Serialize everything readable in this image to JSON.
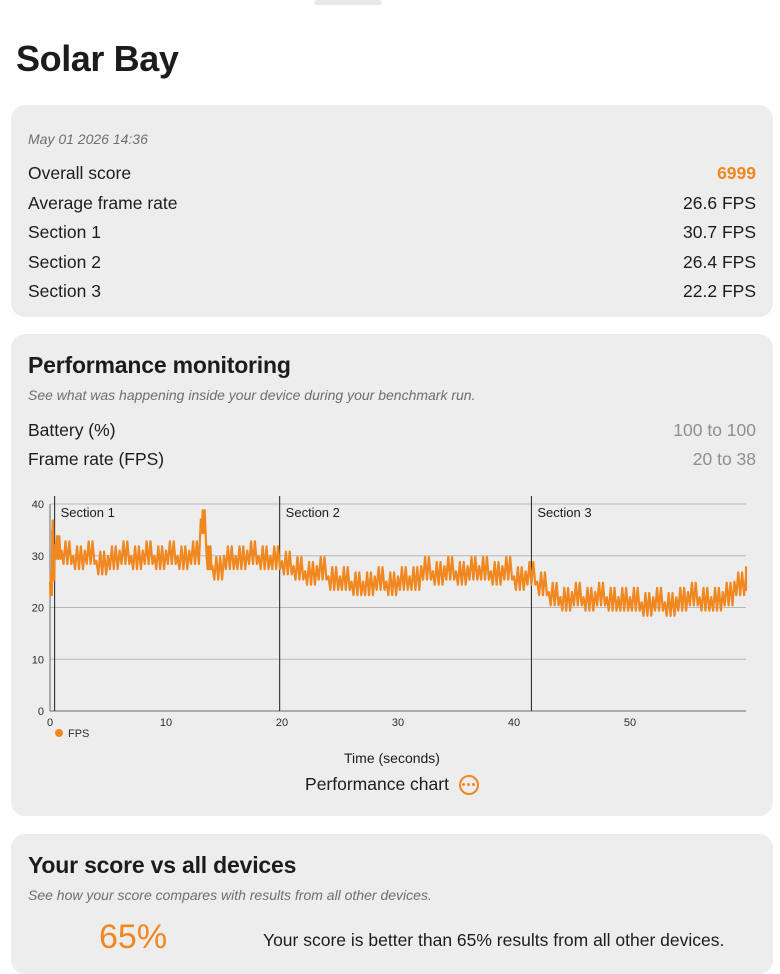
{
  "page": {
    "title": "Solar Bay"
  },
  "summary": {
    "timestamp": "May 01 2026 14:36",
    "rows": [
      {
        "label": "Overall score",
        "value": "6999"
      },
      {
        "label": "Average frame rate",
        "value": "26.6 FPS"
      },
      {
        "label": "Section 1",
        "value": "30.7 FPS"
      },
      {
        "label": "Section 2",
        "value": "26.4 FPS"
      },
      {
        "label": "Section 3",
        "value": "22.2 FPS"
      }
    ]
  },
  "performance": {
    "title": "Performance monitoring",
    "subtitle": "See what was happening inside your device during your benchmark run.",
    "metrics": [
      {
        "label": "Battery (%)",
        "value": "100 to 100"
      },
      {
        "label": "Frame rate (FPS)",
        "value": "20 to 38"
      }
    ],
    "chart_link_label": "Performance chart",
    "more_icon": "ellipsis-circle-icon"
  },
  "chart_data": {
    "type": "line",
    "xlabel": "Time (seconds)",
    "ylabel": "",
    "xlim": [
      0,
      60
    ],
    "ylim": [
      0,
      40
    ],
    "x_ticks": [
      0,
      10,
      20,
      30,
      40,
      50
    ],
    "y_ticks": [
      0,
      10,
      20,
      30,
      40
    ],
    "grid": true,
    "legend_position": "bottom-left",
    "color": "#f0871f",
    "sections": [
      {
        "label": "Section 1",
        "start": 0.4
      },
      {
        "label": "Section 2",
        "start": 19.8
      },
      {
        "label": "Section 3",
        "start": 41.5
      }
    ],
    "series": [
      {
        "name": "FPS",
        "x": [
          0,
          0.2,
          0.3,
          0.4,
          1,
          2,
          3,
          4,
          5,
          6,
          7,
          8,
          9,
          10,
          11,
          12,
          13,
          13.5,
          14,
          15,
          16,
          17,
          18,
          19,
          20,
          21,
          22,
          23,
          24,
          25,
          26,
          27,
          28,
          29,
          30,
          31,
          32,
          33,
          34,
          35,
          36,
          37,
          38,
          39,
          40,
          41,
          42,
          43,
          44,
          45,
          46,
          47,
          48,
          49,
          50,
          51,
          52,
          53,
          54,
          55,
          56,
          57,
          58,
          59,
          60
        ],
        "values": [
          25,
          35,
          28,
          32,
          31,
          30,
          31,
          29,
          30,
          31,
          30,
          31,
          30,
          31,
          30,
          31,
          37,
          30,
          28,
          30,
          30,
          31,
          30,
          30,
          29,
          28,
          27,
          28,
          26,
          26,
          25,
          25,
          26,
          25,
          26,
          26,
          28,
          27,
          28,
          27,
          28,
          28,
          27,
          28,
          26,
          27,
          25,
          23,
          22,
          23,
          22,
          23,
          22,
          22,
          22,
          21,
          22,
          21,
          22,
          23,
          22,
          22,
          23,
          25,
          26
        ]
      }
    ]
  },
  "comparison": {
    "title": "Your score vs all devices",
    "subtitle": "See how your score compares with results from all other devices.",
    "percentile": "65%",
    "text": "Your score is better than 65% results from all other devices."
  }
}
